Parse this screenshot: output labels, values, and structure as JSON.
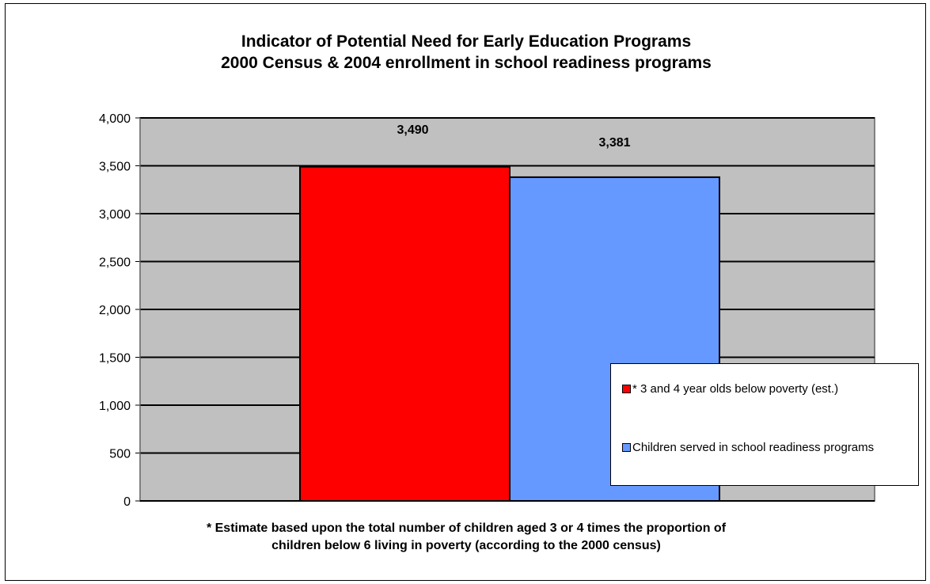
{
  "chart_data": {
    "type": "bar",
    "title": "Indicator of Potential Need for Early Education Programs",
    "subtitle": "2000 Census & 2004 enrollment in school readiness programs",
    "categories": [
      ""
    ],
    "series": [
      {
        "name": "* 3 and 4 year olds below poverty (est.)",
        "values": [
          3490
        ],
        "color": "#ff0000",
        "value_label": "3,490"
      },
      {
        "name": "Children served in school readiness programs",
        "values": [
          3381
        ],
        "color": "#6699ff",
        "value_label": "3,381"
      }
    ],
    "ylim": [
      0,
      4000
    ],
    "yticks": [
      0,
      500,
      1000,
      1500,
      2000,
      2500,
      3000,
      3500,
      4000
    ],
    "ytick_labels": [
      "0",
      "500",
      "1,000",
      "1,500",
      "2,000",
      "2,500",
      "3,000",
      "3,500",
      "4,000"
    ],
    "xlabel": "",
    "ylabel": "",
    "grid": true,
    "plot_background": "#c0c0c0",
    "legend_position": "lower-right",
    "footnote_lines": [
      "* Estimate based upon the  total number of children aged 3 or 4 times the proportion of",
      "children below 6 living in poverty (according to the 2000 census)"
    ]
  }
}
